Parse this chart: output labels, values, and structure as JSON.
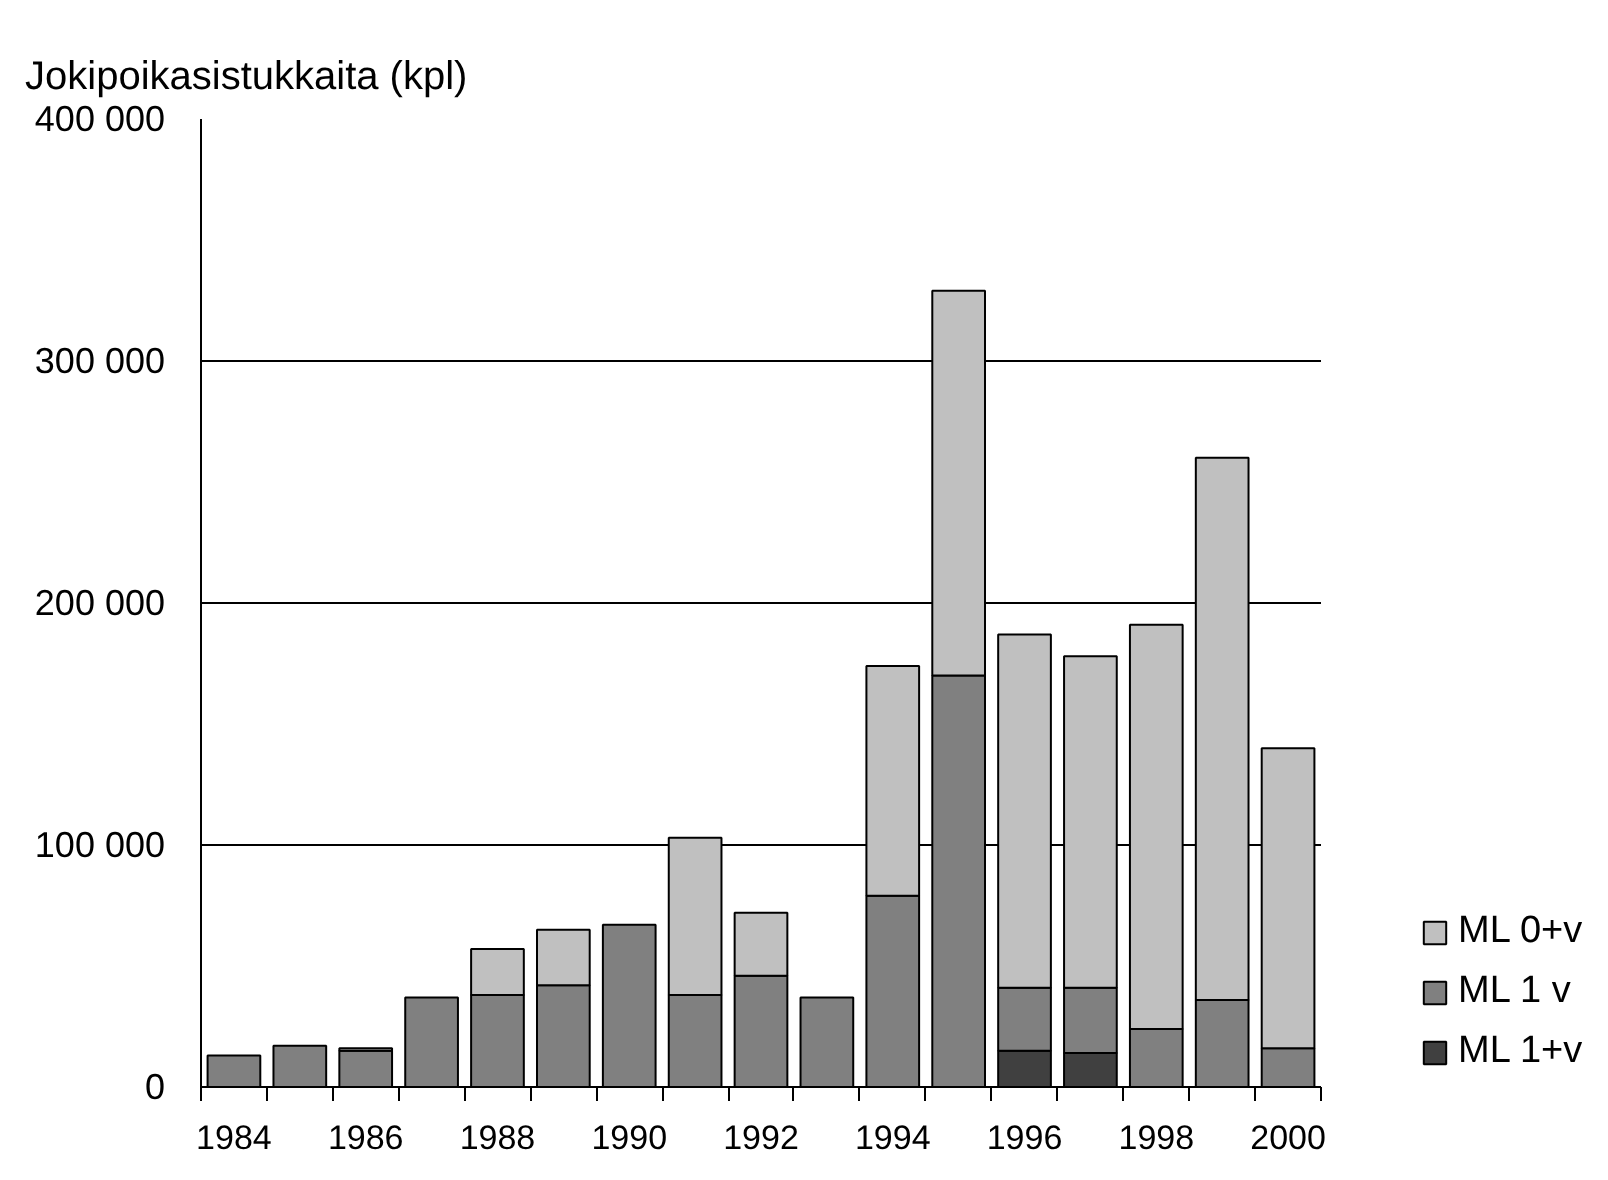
{
  "chart_data": {
    "type": "bar",
    "ylabel": "Jokipoikasistukkaita (kpl)",
    "categories": [
      "1984",
      null,
      "1986",
      null,
      "1988",
      null,
      "1990",
      null,
      "1992",
      null,
      "1994",
      null,
      "1996",
      null,
      "1998",
      null,
      "2000"
    ],
    "stacked": true,
    "series": [
      {
        "name": "ML 1+v",
        "color": "#404040",
        "values": [
          null,
          null,
          null,
          null,
          null,
          null,
          null,
          null,
          null,
          null,
          null,
          null,
          15000,
          14000,
          null,
          null,
          null
        ]
      },
      {
        "name": "ML 1 v",
        "color": "#808080",
        "values": [
          13000,
          17000,
          15000,
          37000,
          38000,
          42000,
          67000,
          38000,
          46000,
          37000,
          79000,
          170000,
          26000,
          27000,
          24000,
          36000,
          16000
        ]
      },
      {
        "name": "ML 0+v",
        "color": "#c0c0c0",
        "values": [
          null,
          null,
          1000,
          null,
          19000,
          23000,
          null,
          65000,
          26000,
          null,
          95000,
          159000,
          146000,
          137000,
          167000,
          224000,
          124000
        ]
      }
    ],
    "ylim": [
      0,
      400000
    ],
    "yticks": [
      0,
      {
        "value": 100000,
        "label": "100 000"
      },
      {
        "value": 200000,
        "label": "200 000"
      },
      {
        "value": 300000,
        "label": "300 000"
      },
      {
        "value": 400000,
        "label": "400 000"
      }
    ],
    "grid": "y",
    "legend": "bottom right"
  }
}
